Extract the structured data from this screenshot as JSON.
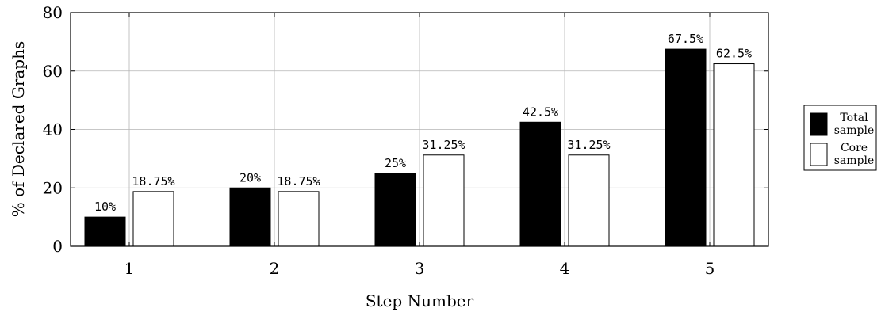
{
  "chart_data": {
    "type": "bar",
    "title": "",
    "xlabel": "Step Number",
    "ylabel": "% of Declared Graphs",
    "categories": [
      "1",
      "2",
      "3",
      "4",
      "5"
    ],
    "ylim": [
      0,
      80
    ],
    "yticks": [
      0,
      20,
      40,
      60,
      80
    ],
    "grid": true,
    "legend_position": "right",
    "series": [
      {
        "name": "Total sample",
        "legend_lines": [
          "Total",
          "sample"
        ],
        "color": "#000000",
        "values": [
          10,
          20,
          25,
          42.5,
          67.5
        ],
        "labels": [
          "10%",
          "20%",
          "25%",
          "42.5%",
          "67.5%"
        ]
      },
      {
        "name": "Core sample",
        "legend_lines": [
          "Core",
          "sample"
        ],
        "color": "#ffffff",
        "values": [
          18.75,
          18.75,
          31.25,
          31.25,
          62.5
        ],
        "labels": [
          "18.75%",
          "18.75%",
          "31.25%",
          "31.25%",
          "62.5%"
        ]
      }
    ]
  }
}
